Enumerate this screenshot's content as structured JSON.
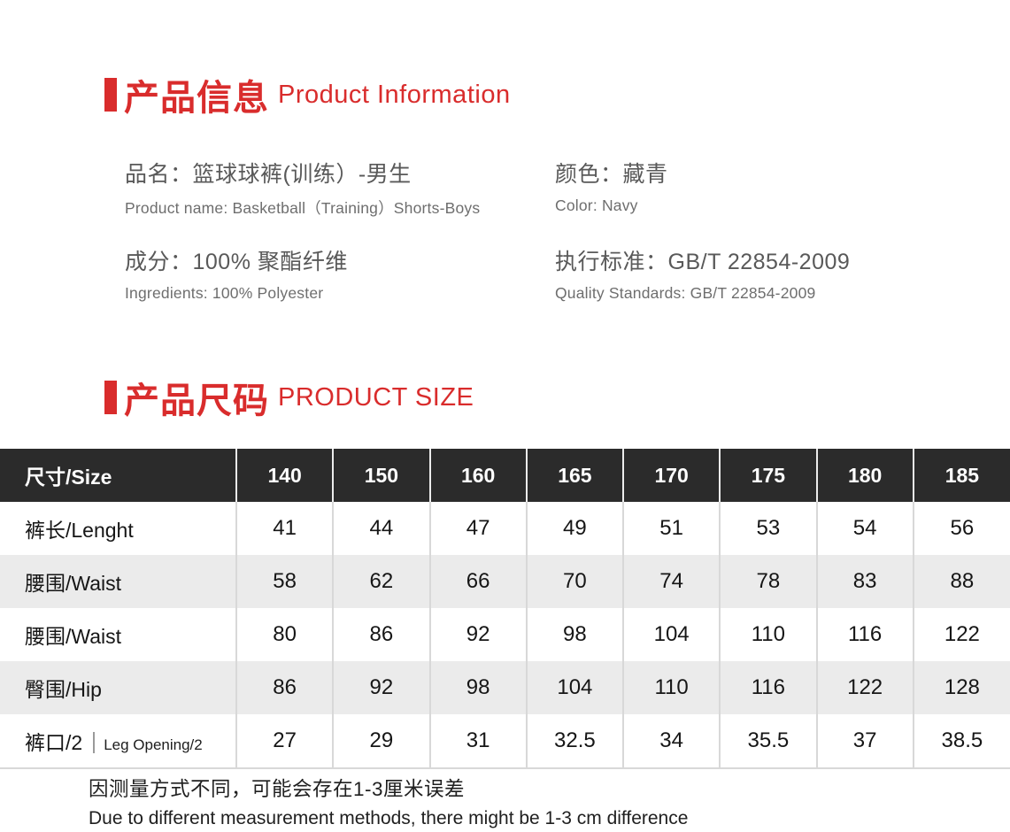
{
  "accent_color": "#d92c2c",
  "table_header_bg": "#2b2b2b",
  "table_alt_row_bg": "#ebebeb",
  "section_info": {
    "title_zh": "产品信息",
    "title_en": "Product Information"
  },
  "info_fields": [
    {
      "zh": "品名：篮球球裤(训练）-男生",
      "en": "Product name: Basketball（Training）Shorts-Boys"
    },
    {
      "zh": "颜色：藏青",
      "en": "Color: Navy"
    },
    {
      "zh": "成分：100% 聚酯纤维",
      "en": "Ingredients: 100% Polyester"
    },
    {
      "zh": "执行标准：GB/T 22854-2009",
      "en": "Quality Standards: GB/T 22854-2009"
    }
  ],
  "section_size": {
    "title_zh": "产品尺码",
    "title_en": "PRODUCT SIZE"
  },
  "size_table": {
    "header": [
      "尺寸/Size",
      "140",
      "150",
      "160",
      "165",
      "170",
      "175",
      "180",
      "185"
    ],
    "rows": [
      {
        "label": "裤长/Lenght",
        "values": [
          "41",
          "44",
          "47",
          "49",
          "51",
          "53",
          "54",
          "56"
        ]
      },
      {
        "label": "腰围/Waist",
        "values": [
          "58",
          "62",
          "66",
          "70",
          "74",
          "78",
          "83",
          "88"
        ]
      },
      {
        "label": "腰围/Waist",
        "values": [
          "80",
          "86",
          "92",
          "98",
          "104",
          "110",
          "116",
          "122"
        ]
      },
      {
        "label": "臀围/Hip",
        "values": [
          "86",
          "92",
          "98",
          "104",
          "110",
          "116",
          "122",
          "128"
        ]
      },
      {
        "label": "裤口/2",
        "label_sub": "Leg Opening/2",
        "values": [
          "27",
          "29",
          "31",
          "32.5",
          "34",
          "35.5",
          "37",
          "38.5"
        ]
      }
    ]
  },
  "footnote": {
    "zh": "因测量方式不同，可能会存在1-3厘米误差",
    "en": "Due to different measurement methods, there might be 1-3 cm difference"
  }
}
